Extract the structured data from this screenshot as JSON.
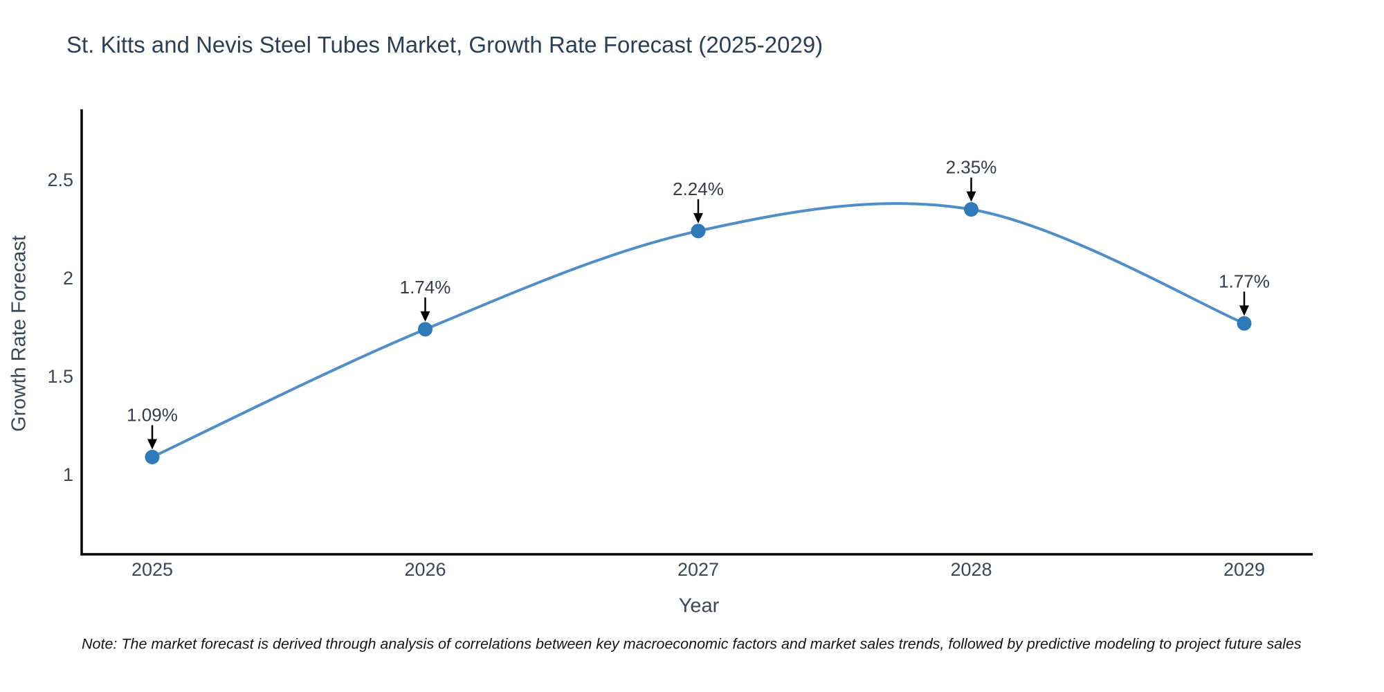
{
  "chart_data": {
    "type": "line",
    "title": "St. Kitts and Nevis Steel Tubes Market, Growth Rate Forecast (2025-2029)",
    "xlabel": "Year",
    "ylabel": "Growth Rate Forecast",
    "categories": [
      "2025",
      "2026",
      "2027",
      "2028",
      "2029"
    ],
    "values": [
      1.09,
      1.74,
      2.24,
      2.35,
      1.77
    ],
    "point_labels": [
      "1.09%",
      "1.74%",
      "2.24%",
      "2.35%",
      "1.77%"
    ],
    "yticks": [
      1,
      1.5,
      2,
      2.5
    ],
    "ylim": [
      0.6,
      2.85
    ],
    "grid": false,
    "legend": "none",
    "line_color": "#4f8fc9",
    "marker_color": "#2f7ab9",
    "arrow_color": "#000000",
    "axis_color": "#000000",
    "tick_label_color": "#3b4656",
    "annotation_color": "#353c49",
    "note": "Note: The market forecast is derived through analysis of correlations between key macroeconomic factors and market sales trends, followed by predictive modeling to project future sales"
  }
}
